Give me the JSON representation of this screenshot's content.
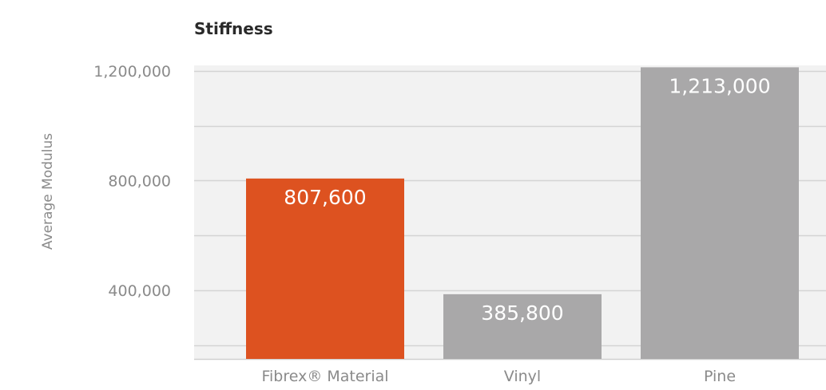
{
  "chart_data": {
    "type": "bar",
    "title": "Stiffness",
    "xlabel": "",
    "ylabel": "Average Modulus",
    "categories": [
      "Fibrex® Material",
      "Vinyl",
      "Pine"
    ],
    "values": [
      807600,
      385800,
      1213000
    ],
    "data_labels": [
      "807,600",
      "385,800",
      "1,213,000"
    ],
    "colors": [
      "#DD5220",
      "#A9A8A9",
      "#A9A8A9"
    ],
    "ylim": [
      150000,
      1220000
    ],
    "y_ticks": [
      400000,
      800000,
      1200000
    ],
    "y_tick_labels": [
      "400,000",
      "800,000",
      "1,200,000"
    ],
    "grid_values": [
      200000,
      400000,
      600000,
      800000,
      1000000,
      1200000
    ],
    "grid": true,
    "legend": "none",
    "plot_background": "#F2F2F2",
    "grid_color": "#D4D4D4"
  }
}
